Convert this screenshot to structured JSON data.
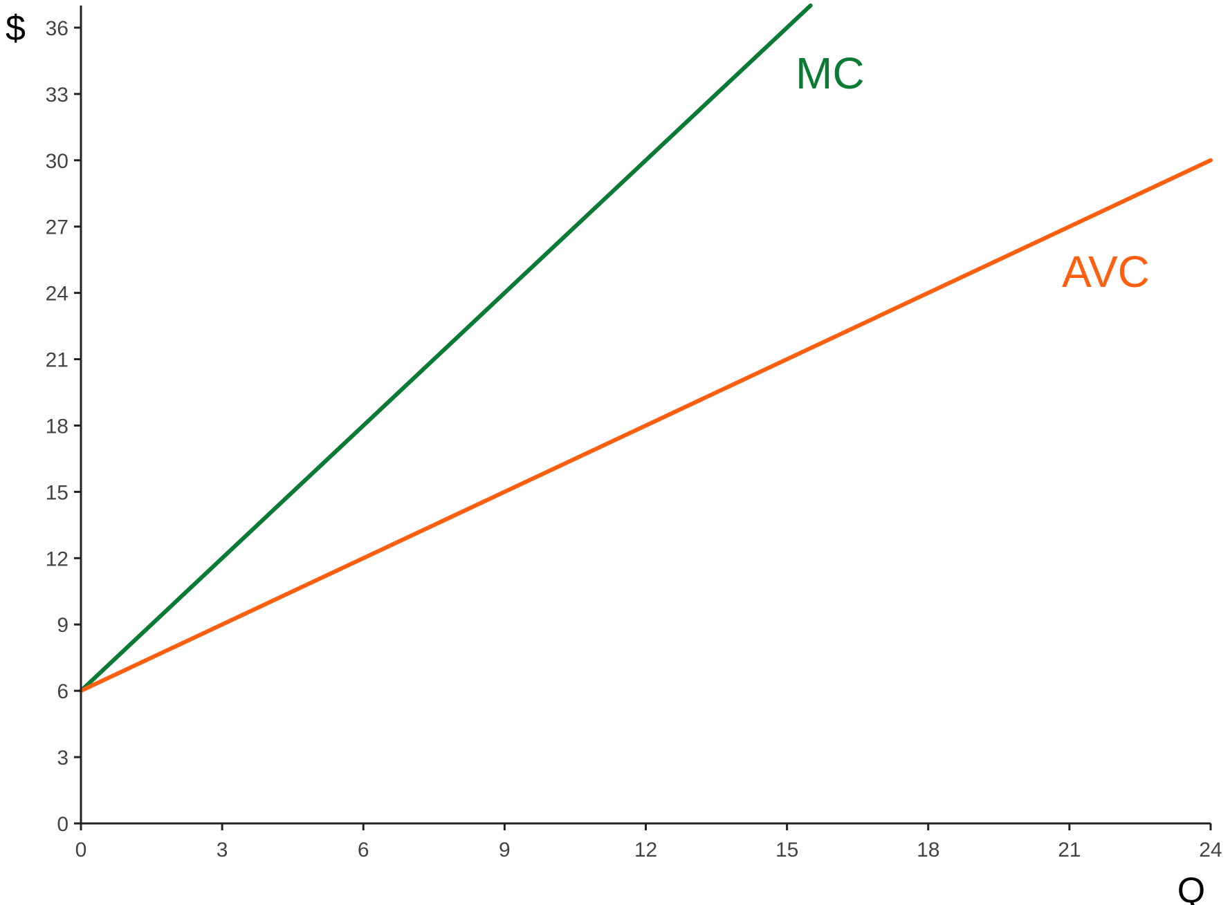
{
  "chart_data": {
    "type": "line",
    "title": "",
    "xlabel": "Q",
    "ylabel": "$",
    "xlim": [
      0,
      24
    ],
    "ylim": [
      0,
      37
    ],
    "x_ticks": [
      0,
      3,
      6,
      9,
      12,
      15,
      18,
      21,
      24
    ],
    "y_ticks": [
      0,
      3,
      6,
      9,
      12,
      15,
      18,
      21,
      24,
      27,
      30,
      33,
      36
    ],
    "grid": false,
    "legend": "none",
    "series": [
      {
        "name": "MC",
        "color": "#0b7a35",
        "x": [
          0,
          15.5
        ],
        "y": [
          6,
          37
        ]
      },
      {
        "name": "AVC",
        "color": "#ff5f0f",
        "x": [
          0,
          24
        ],
        "y": [
          6,
          30
        ]
      }
    ]
  }
}
